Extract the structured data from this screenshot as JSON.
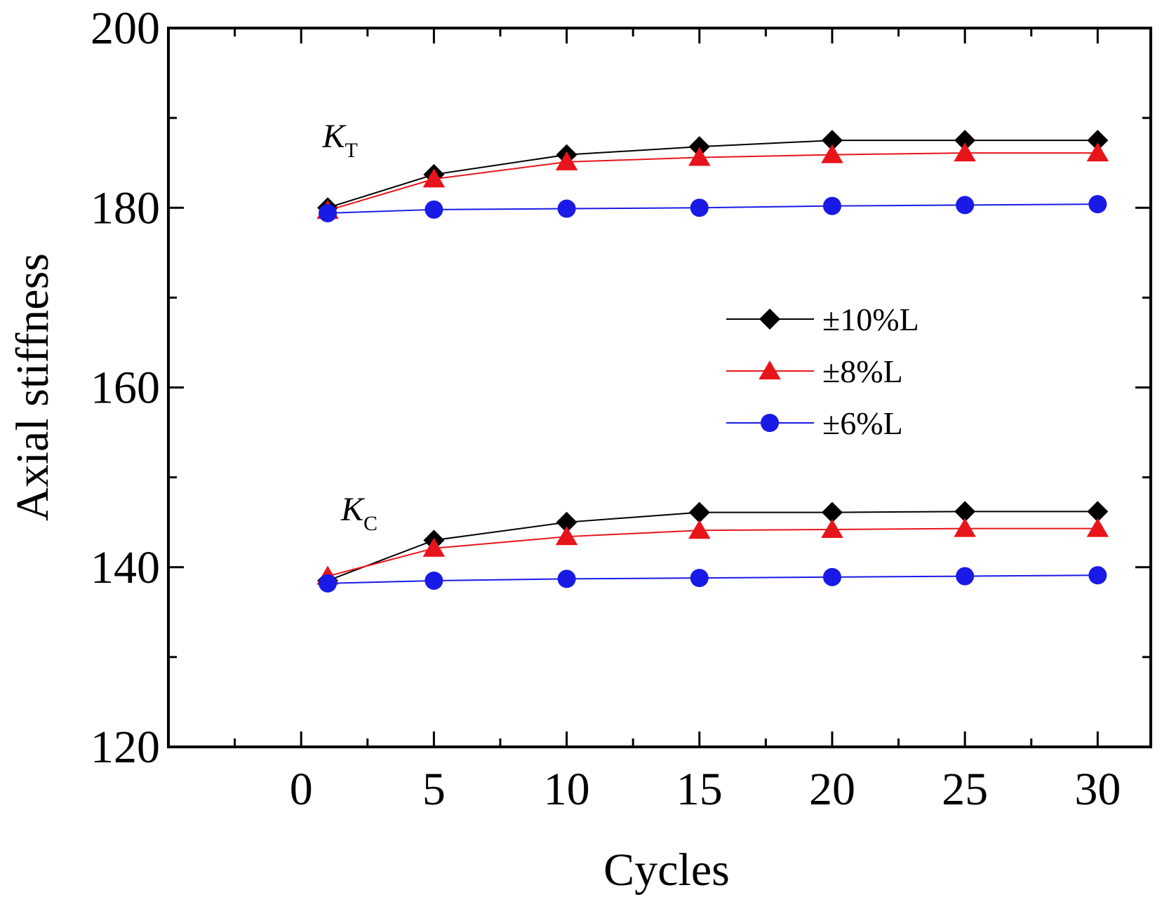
{
  "chart_data": {
    "type": "line",
    "title": "",
    "xlabel": "Cycles",
    "ylabel": "Axial stiffness",
    "xlim": [
      -5,
      32
    ],
    "ylim": [
      120,
      200
    ],
    "xticks": [
      0,
      5,
      10,
      15,
      20,
      25,
      30
    ],
    "xtick_labels": [
      "0",
      "5",
      "10",
      "15",
      "20",
      "25",
      "30"
    ],
    "yticks": [
      120,
      140,
      160,
      180,
      200
    ],
    "ytick_labels": [
      "120",
      "140",
      "160",
      "180",
      "200"
    ],
    "legend_position": "center-right",
    "x": [
      1,
      5,
      10,
      15,
      20,
      25,
      30
    ],
    "series": [
      {
        "name": "±10%L",
        "group": "KT",
        "marker": "diamond",
        "color": "#000000",
        "values": [
          180.0,
          183.7,
          185.9,
          186.8,
          187.5,
          187.5,
          187.5
        ]
      },
      {
        "name": "±8%L",
        "group": "KT",
        "marker": "triangle",
        "color": "#e8141b",
        "values": [
          179.7,
          183.2,
          185.1,
          185.6,
          185.9,
          186.1,
          186.1
        ]
      },
      {
        "name": "±6%L",
        "group": "KT",
        "marker": "circle",
        "color": "#1a1ae6",
        "values": [
          179.4,
          179.8,
          179.9,
          180.0,
          180.2,
          180.3,
          180.4
        ]
      },
      {
        "name": "±10%L",
        "group": "KC",
        "marker": "diamond",
        "color": "#000000",
        "values": [
          138.5,
          143.0,
          145.0,
          146.1,
          146.1,
          146.2,
          146.2
        ]
      },
      {
        "name": "±8%L",
        "group": "KC",
        "marker": "triangle",
        "color": "#e8141b",
        "values": [
          139.0,
          142.1,
          143.4,
          144.1,
          144.2,
          144.3,
          144.3
        ]
      },
      {
        "name": "±6%L",
        "group": "KC",
        "marker": "circle",
        "color": "#1a1ae6",
        "values": [
          138.2,
          138.5,
          138.7,
          138.8,
          138.9,
          139.0,
          139.1
        ]
      }
    ],
    "legend": [
      {
        "label": "±10%L",
        "marker": "diamond",
        "color": "#000000"
      },
      {
        "label": "±8%L",
        "marker": "triangle",
        "color": "#e8141b"
      },
      {
        "label": "±6%L",
        "marker": "circle",
        "color": "#1a1ae6"
      }
    ],
    "annotations": [
      {
        "main": "K",
        "sub": "T",
        "x": 0.8,
        "y": 187.5
      },
      {
        "main": "K",
        "sub": "C",
        "x": 1.5,
        "y": 146.0
      }
    ]
  }
}
